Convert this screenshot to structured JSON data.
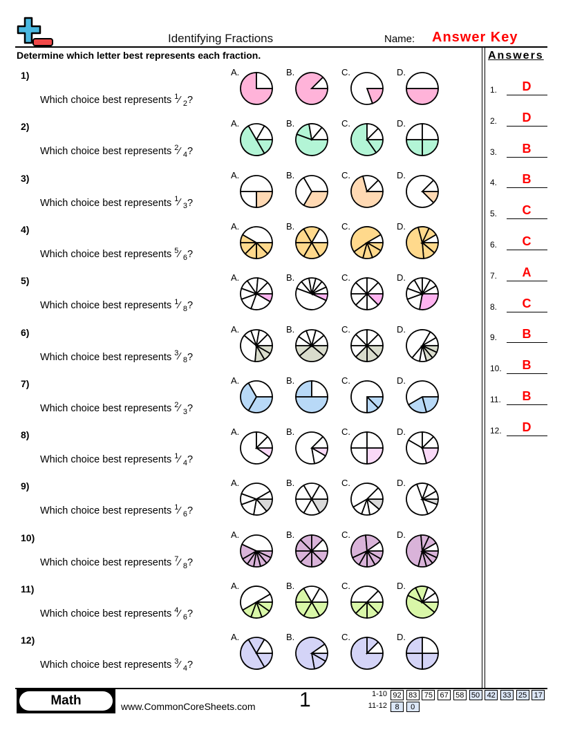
{
  "header": {
    "title": "Identifying Fractions",
    "name_label": "Name:",
    "name_value": "Answer Key",
    "logo": "plus-minus-logo"
  },
  "instructions": "Determine which letter best represents each fraction.",
  "answers_heading": "Answers",
  "question_prefix": "Which choice best represents",
  "option_letters": [
    "A.",
    "B.",
    "C.",
    "D."
  ],
  "pie_note": "slices listed clockwise from 3 o'clock in degrees; first 'shaded' slices are filled",
  "questions": [
    {
      "num": "1)",
      "numerator": "1",
      "denominator": "2",
      "color": "#ffb3d9",
      "pies": [
        {
          "slices": [
            270,
            90
          ],
          "shaded": 1
        },
        {
          "slices": [
            315,
            45
          ],
          "shaded": 1
        },
        {
          "slices": [
            70,
            290
          ],
          "shaded": 1
        },
        {
          "slices": [
            180,
            180
          ],
          "shaded": 1
        }
      ]
    },
    {
      "num": "2)",
      "numerator": "2",
      "denominator": "4",
      "color": "#b3f5d6",
      "pies": [
        {
          "slices": [
            60,
            180,
            60,
            60
          ],
          "shaded": 2
        },
        {
          "slices": [
            200,
            60,
            50,
            50
          ],
          "shaded": 2
        },
        {
          "slices": [
            55,
            215,
            45,
            45
          ],
          "shaded": 2
        },
        {
          "slices": [
            90,
            90,
            90,
            90
          ],
          "shaded": 2
        }
      ]
    },
    {
      "num": "3)",
      "numerator": "1",
      "denominator": "3",
      "color": "#ffd9b3",
      "pies": [
        {
          "slices": [
            90,
            90,
            180
          ],
          "shaded": 1
        },
        {
          "slices": [
            120,
            120,
            120
          ],
          "shaded": 1
        },
        {
          "slices": [
            255,
            60,
            45
          ],
          "shaded": 1
        },
        {
          "slices": [
            45,
            270,
            45
          ],
          "shaded": 1
        }
      ]
    },
    {
      "num": "4)",
      "numerator": "5",
      "denominator": "6",
      "color": "#ffd98c",
      "pies": [
        {
          "slices": [
            45,
            45,
            45,
            45,
            30,
            150
          ],
          "shaded": 5
        },
        {
          "slices": [
            60,
            60,
            60,
            60,
            60,
            60
          ],
          "shaded": 5
        },
        {
          "slices": [
            30,
            40,
            35,
            40,
            185,
            30
          ],
          "shaded": 5
        },
        {
          "slices": [
            40,
            45,
            170,
            40,
            35,
            30
          ],
          "shaded": 5
        }
      ]
    },
    {
      "num": "5)",
      "numerator": "1",
      "denominator": "8",
      "color": "#ffb3f0",
      "pies": [
        {
          "slices": [
            30,
            80,
            50,
            40,
            35,
            40,
            40,
            45
          ],
          "shaded": 1
        },
        {
          "slices": [
            25,
            175,
            30,
            30,
            25,
            25,
            25,
            25
          ],
          "shaded": 1
        },
        {
          "slices": [
            45,
            45,
            45,
            45,
            45,
            45,
            45,
            45
          ],
          "shaded": 1
        },
        {
          "slices": [
            100,
            60,
            40,
            40,
            30,
            30,
            30,
            30
          ],
          "shaded": 1
        }
      ]
    },
    {
      "num": "6)",
      "numerator": "3",
      "denominator": "8",
      "color": "#d9dccc",
      "pies": [
        {
          "slices": [
            30,
            30,
            35,
            125,
            30,
            30,
            35,
            45
          ],
          "shaded": 3
        },
        {
          "slices": [
            40,
            100,
            40,
            35,
            35,
            35,
            35,
            40
          ],
          "shaded": 3
        },
        {
          "slices": [
            45,
            45,
            45,
            45,
            45,
            45,
            45,
            45
          ],
          "shaded": 3
        },
        {
          "slices": [
            25,
            25,
            25,
            25,
            30,
            170,
            30,
            30
          ],
          "shaded": 3
        }
      ]
    },
    {
      "num": "7)",
      "numerator": "2",
      "denominator": "3",
      "color": "#b8d9f7",
      "pies": [
        {
          "slices": [
            120,
            120,
            120
          ],
          "shaded": 2
        },
        {
          "slices": [
            180,
            90,
            90
          ],
          "shaded": 2
        },
        {
          "slices": [
            45,
            45,
            270
          ],
          "shaded": 2
        },
        {
          "slices": [
            75,
            75,
            210
          ],
          "shaded": 2
        }
      ]
    },
    {
      "num": "8)",
      "numerator": "1",
      "denominator": "4",
      "color": "#f9d9f7",
      "pies": [
        {
          "slices": [
            35,
            235,
            45,
            45
          ],
          "shaded": 1
        },
        {
          "slices": [
            30,
            50,
            235,
            45
          ],
          "shaded": 1
        },
        {
          "slices": [
            90,
            90,
            90,
            90
          ],
          "shaded": 1
        },
        {
          "slices": [
            75,
            135,
            60,
            45,
            45
          ],
          "shaded": 1
        }
      ]
    },
    {
      "num": "9)",
      "numerator": "1",
      "denominator": "6",
      "color": "#d9d9d9",
      "pies": [
        {
          "slices": [
            50,
            50,
            60,
            40,
            130,
            30
          ],
          "shaded": 1
        },
        {
          "slices": [
            60,
            60,
            60,
            60,
            60,
            60
          ],
          "shaded": 1
        },
        {
          "slices": [
            40,
            40,
            30,
            40,
            165,
            45
          ],
          "shaded": 1
        },
        {
          "slices": [
            20,
            50,
            180,
            40,
            40,
            30
          ],
          "shaded": 1
        }
      ]
    },
    {
      "num": "10)",
      "numerator": "7",
      "denominator": "8",
      "color": "#d9b3d9",
      "pies": [
        {
          "slices": [
            25,
            25,
            25,
            25,
            25,
            25,
            55,
            155
          ],
          "shaded": 7
        },
        {
          "slices": [
            45,
            45,
            45,
            45,
            45,
            45,
            45,
            45
          ],
          "shaded": 7
        },
        {
          "slices": [
            30,
            30,
            30,
            30,
            35,
            110,
            60,
            35
          ],
          "shaded": 7
        },
        {
          "slices": [
            25,
            25,
            25,
            30,
            160,
            30,
            35,
            30
          ],
          "shaded": 7
        }
      ]
    },
    {
      "num": "11)",
      "numerator": "4",
      "denominator": "6",
      "color": "#d9f7a8",
      "pies": [
        {
          "slices": [
            35,
            35,
            40,
            40,
            180,
            30
          ],
          "shaded": 4
        },
        {
          "slices": [
            60,
            60,
            60,
            60,
            60,
            60
          ],
          "shaded": 4
        },
        {
          "slices": [
            45,
            45,
            45,
            45,
            135,
            45
          ],
          "shaded": 4
        },
        {
          "slices": [
            40,
            165,
            40,
            45,
            35,
            35
          ],
          "shaded": 4
        }
      ]
    },
    {
      "num": "12)",
      "numerator": "3",
      "denominator": "4",
      "color": "#d4d4f7",
      "pies": [
        {
          "slices": [
            60,
            180,
            60,
            60
          ],
          "shaded": 3
        },
        {
          "slices": [
            30,
            50,
            245,
            35
          ],
          "shaded": 3
        },
        {
          "slices": [
            270,
            45,
            45
          ],
          "shaded": 2
        },
        {
          "slices": [
            90,
            90,
            90,
            90
          ],
          "shaded": 3
        }
      ]
    }
  ],
  "answers": [
    {
      "num": "1.",
      "val": "D"
    },
    {
      "num": "2.",
      "val": "D"
    },
    {
      "num": "3.",
      "val": "B"
    },
    {
      "num": "4.",
      "val": "B"
    },
    {
      "num": "5.",
      "val": "C"
    },
    {
      "num": "6.",
      "val": "C"
    },
    {
      "num": "7.",
      "val": "A"
    },
    {
      "num": "8.",
      "val": "C"
    },
    {
      "num": "9.",
      "val": "B"
    },
    {
      "num": "10.",
      "val": "B"
    },
    {
      "num": "11.",
      "val": "B"
    },
    {
      "num": "12.",
      "val": "D"
    }
  ],
  "footer": {
    "subject": "Math",
    "website": "www.CommonCoreSheets.com",
    "page": "1",
    "score_rows": [
      {
        "label": "1-10",
        "scores": [
          "92",
          "83",
          "75",
          "67",
          "58",
          "50",
          "42",
          "33",
          "25",
          "17"
        ]
      },
      {
        "label": "11-12",
        "scores": [
          "8",
          "0"
        ]
      }
    ]
  }
}
